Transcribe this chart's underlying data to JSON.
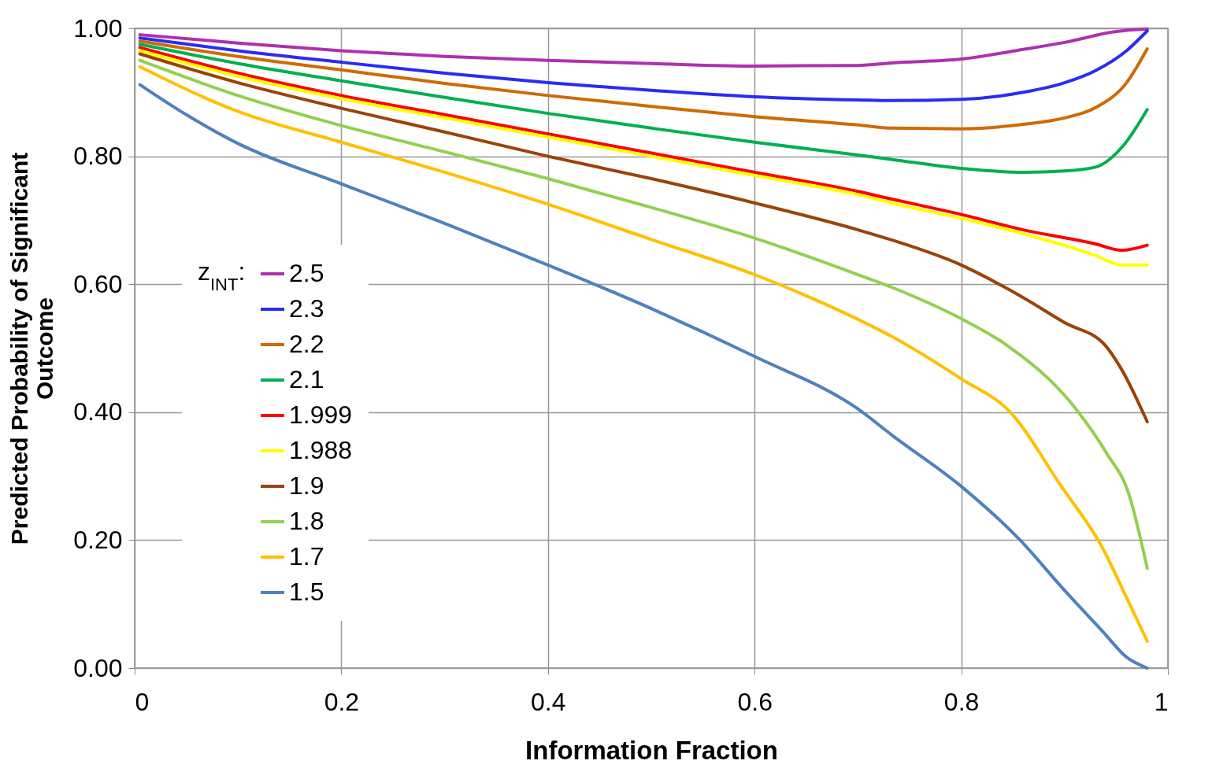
{
  "chart_data": {
    "type": "line",
    "xlabel": "Information Fraction",
    "ylabel": "Predicted Probability of Significant Outcome",
    "legend_title": "z$_{INT}$:",
    "legend": "bottom left",
    "grid": true,
    "xlim": [
      0,
      1
    ],
    "ylim": [
      0,
      1
    ],
    "xticks": [
      0,
      0.2,
      0.4,
      0.6,
      0.8,
      1
    ],
    "yticks": [
      {
        "value": 0,
        "label": "0.00"
      },
      {
        "value": 0.2,
        "label": "0.20"
      },
      {
        "value": 0.4,
        "label": "0.40"
      },
      {
        "value": 0.6,
        "label": "0.60"
      },
      {
        "value": 0.8,
        "label": "0.80"
      },
      {
        "value": 1,
        "label": "1.00"
      }
    ],
    "series": [
      {
        "name": "2.5",
        "color": "#b02fb0",
        "x": [
          0.005,
          0.1,
          0.2,
          0.3,
          0.4,
          0.5,
          0.6,
          0.7,
          0.733,
          0.8,
          0.86,
          0.9,
          0.95,
          0.98
        ],
        "values": [
          0.99,
          0.977,
          0.965,
          0.956,
          0.95,
          0.945,
          0.941,
          0.942,
          0.946,
          0.952,
          0.967,
          0.978,
          0.995,
          0.999
        ]
      },
      {
        "name": "2.3",
        "color": "#2b2bf5",
        "x": [
          0.005,
          0.1,
          0.2,
          0.3,
          0.4,
          0.5,
          0.6,
          0.7,
          0.733,
          0.8,
          0.86,
          0.9,
          0.93,
          0.96,
          0.98
        ],
        "values": [
          0.985,
          0.965,
          0.947,
          0.93,
          0.915,
          0.903,
          0.893,
          0.888,
          0.887,
          0.889,
          0.9,
          0.915,
          0.934,
          0.965,
          0.996
        ]
      },
      {
        "name": "2.2",
        "color": "#d06a00",
        "x": [
          0.005,
          0.1,
          0.2,
          0.3,
          0.4,
          0.5,
          0.6,
          0.7,
          0.733,
          0.8,
          0.86,
          0.9,
          0.93,
          0.96,
          0.98
        ],
        "values": [
          0.98,
          0.956,
          0.935,
          0.914,
          0.895,
          0.878,
          0.862,
          0.849,
          0.844,
          0.843,
          0.85,
          0.86,
          0.876,
          0.915,
          0.968
        ]
      },
      {
        "name": "2.1",
        "color": "#00b050",
        "x": [
          0.005,
          0.1,
          0.2,
          0.3,
          0.4,
          0.5,
          0.6,
          0.7,
          0.733,
          0.8,
          0.86,
          0.9,
          0.93,
          0.957,
          0.98
        ],
        "values": [
          0.975,
          0.945,
          0.918,
          0.892,
          0.867,
          0.844,
          0.822,
          0.802,
          0.795,
          0.781,
          0.775,
          0.777,
          0.783,
          0.817,
          0.873
        ]
      },
      {
        "name": "1.999",
        "color": "#ff0000",
        "x": [
          0.005,
          0.1,
          0.2,
          0.3,
          0.4,
          0.5,
          0.6,
          0.7,
          0.733,
          0.8,
          0.86,
          0.93,
          0.955,
          0.98
        ],
        "values": [
          0.97,
          0.93,
          0.895,
          0.865,
          0.835,
          0.805,
          0.775,
          0.745,
          0.733,
          0.709,
          0.685,
          0.663,
          0.653,
          0.661
        ]
      },
      {
        "name": "1.988",
        "color": "#ffff00",
        "x": [
          0.005,
          0.1,
          0.2,
          0.3,
          0.4,
          0.5,
          0.6,
          0.7,
          0.733,
          0.8,
          0.86,
          0.93,
          0.955,
          0.98
        ],
        "values": [
          0.965,
          0.925,
          0.89,
          0.86,
          0.83,
          0.8,
          0.77,
          0.74,
          0.727,
          0.703,
          0.679,
          0.645,
          0.63,
          0.63
        ]
      },
      {
        "name": "1.9",
        "color": "#9c4208",
        "x": [
          0.005,
          0.1,
          0.2,
          0.3,
          0.4,
          0.5,
          0.6,
          0.7,
          0.733,
          0.8,
          0.86,
          0.9,
          0.939,
          0.954,
          0.98
        ],
        "values": [
          0.96,
          0.915,
          0.875,
          0.838,
          0.8,
          0.765,
          0.727,
          0.685,
          0.669,
          0.63,
          0.579,
          0.54,
          0.505,
          0.47,
          0.385
        ]
      },
      {
        "name": "1.8",
        "color": "#92d050",
        "x": [
          0.005,
          0.1,
          0.2,
          0.3,
          0.4,
          0.5,
          0.6,
          0.7,
          0.733,
          0.8,
          0.842,
          0.911,
          0.941,
          0.962,
          0.98
        ],
        "values": [
          0.95,
          0.895,
          0.848,
          0.807,
          0.765,
          0.72,
          0.672,
          0.615,
          0.595,
          0.546,
          0.507,
          0.405,
          0.335,
          0.273,
          0.156
        ]
      },
      {
        "name": "1.7",
        "color": "#ffc000",
        "x": [
          0.005,
          0.1,
          0.2,
          0.3,
          0.4,
          0.5,
          0.6,
          0.7,
          0.733,
          0.8,
          0.848,
          0.896,
          0.937,
          0.96,
          0.98
        ],
        "values": [
          0.94,
          0.87,
          0.822,
          0.775,
          0.725,
          0.67,
          0.615,
          0.545,
          0.518,
          0.452,
          0.399,
          0.286,
          0.187,
          0.11,
          0.042
        ]
      },
      {
        "name": "1.5",
        "color": "#4f81bd",
        "x": [
          0.005,
          0.05,
          0.1,
          0.2,
          0.3,
          0.4,
          0.5,
          0.6,
          0.7,
          0.733,
          0.8,
          0.857,
          0.898,
          0.937,
          0.96,
          0.98
        ],
        "values": [
          0.912,
          0.865,
          0.82,
          0.757,
          0.695,
          0.63,
          0.562,
          0.487,
          0.405,
          0.364,
          0.284,
          0.2,
          0.125,
          0.057,
          0.017,
          0.0
        ]
      }
    ]
  }
}
